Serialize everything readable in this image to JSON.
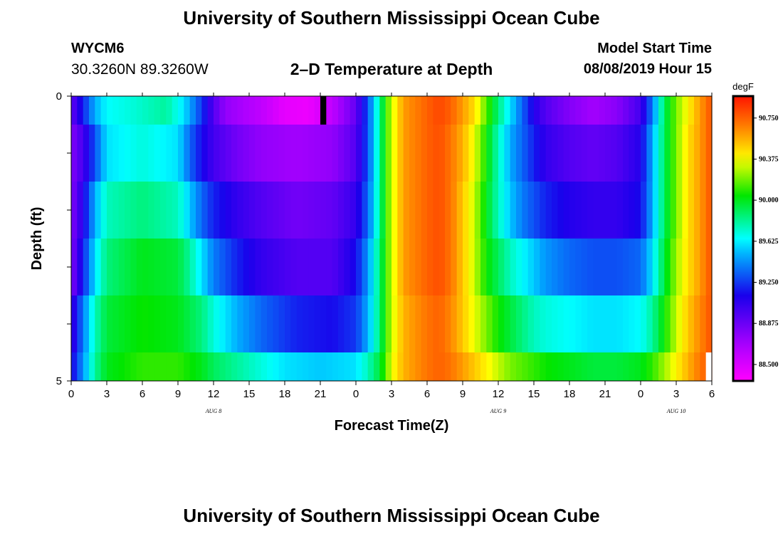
{
  "header": {
    "title": "University of Southern Mississippi Ocean Cube",
    "station_id": "WYCM6",
    "coordinates": "30.3260N 89.3260W",
    "plot_title": "2–D Temperature at Depth",
    "model_start_label": "Model Start Time",
    "model_start_value": "08/08/2019 Hour 15"
  },
  "footer": {
    "title": "University of Southern Mississippi Ocean Cube"
  },
  "chart_data": {
    "type": "heatmap",
    "title": "2–D Temperature at Depth",
    "xlabel": "Forecast Time(Z)",
    "ylabel": "Depth (ft)",
    "x_unit": "hours since Aug 8 00Z",
    "xlim": [
      0,
      54
    ],
    "ylim": [
      0,
      5
    ],
    "x_tick_labels": [
      "0",
      "3",
      "6",
      "9",
      "12",
      "15",
      "18",
      "21",
      "0",
      "3",
      "6",
      "9",
      "12",
      "15",
      "18",
      "21",
      "0",
      "3",
      "6"
    ],
    "x_ticks": [
      0,
      3,
      6,
      9,
      12,
      15,
      18,
      21,
      24,
      27,
      30,
      33,
      36,
      39,
      42,
      45,
      48,
      51,
      54
    ],
    "day_labels": [
      {
        "text": "AUG 8",
        "x": 12
      },
      {
        "text": "AUG 9",
        "x": 36
      },
      {
        "text": "AUG 10",
        "x": 51
      }
    ],
    "y_tick_labels": [
      "0",
      "5"
    ],
    "y_ticks": [
      0,
      1,
      2,
      3,
      4,
      5
    ],
    "colorbar": {
      "unit": "degF",
      "range": [
        88.35,
        90.95
      ],
      "ticks": [
        "88.500",
        "88.875",
        "89.250",
        "89.625",
        "90.000",
        "90.375",
        "90.750"
      ],
      "tick_values": [
        88.5,
        88.875,
        89.25,
        89.625,
        90.0,
        90.375,
        90.75
      ]
    },
    "time_step_hours": 0.5,
    "depth_layers": [
      {
        "depth_range": [
          0,
          0.5
        ],
        "keyframes": [
          [
            0,
            88.9
          ],
          [
            1,
            89.2
          ],
          [
            2,
            89.5
          ],
          [
            3,
            89.65
          ],
          [
            5,
            89.7
          ],
          [
            8,
            89.8
          ],
          [
            9.5,
            89.6
          ],
          [
            11,
            89.25
          ],
          [
            12,
            88.95
          ],
          [
            13,
            88.75
          ],
          [
            16,
            88.6
          ],
          [
            18,
            88.45
          ],
          [
            20,
            88.42
          ],
          [
            22,
            88.6
          ],
          [
            24,
            88.9
          ],
          [
            25,
            89.3
          ],
          [
            26,
            89.8
          ],
          [
            26.5,
            90.1
          ],
          [
            27,
            90.3
          ],
          [
            28,
            90.6
          ],
          [
            30,
            90.75
          ],
          [
            31,
            90.82
          ],
          [
            32,
            90.75
          ],
          [
            33,
            90.6
          ],
          [
            34,
            90.45
          ],
          [
            35,
            90.15
          ],
          [
            36,
            89.85
          ],
          [
            37,
            89.6
          ],
          [
            38,
            89.35
          ],
          [
            39,
            89.1
          ],
          [
            40,
            88.95
          ],
          [
            42,
            88.8
          ],
          [
            44,
            88.7
          ],
          [
            46,
            88.78
          ],
          [
            48,
            89.0
          ],
          [
            49,
            89.4
          ],
          [
            50,
            89.9
          ],
          [
            51,
            90.2
          ],
          [
            52,
            90.4
          ],
          [
            53,
            90.6
          ],
          [
            54,
            90.8
          ]
        ]
      },
      {
        "depth_range": [
          0.5,
          1.5
        ],
        "keyframes": [
          [
            0,
            88.8
          ],
          [
            1,
            89.0
          ],
          [
            2,
            89.3
          ],
          [
            3,
            89.6
          ],
          [
            6,
            89.7
          ],
          [
            9,
            89.6
          ],
          [
            10,
            89.35
          ],
          [
            11,
            89.15
          ],
          [
            12,
            89.0
          ],
          [
            14,
            88.85
          ],
          [
            16,
            88.75
          ],
          [
            19,
            88.7
          ],
          [
            22,
            88.75
          ],
          [
            24,
            88.95
          ],
          [
            25,
            89.3
          ],
          [
            26,
            89.8
          ],
          [
            26.5,
            90.1
          ],
          [
            27,
            90.3
          ],
          [
            28,
            90.6
          ],
          [
            30,
            90.75
          ],
          [
            31,
            90.8
          ],
          [
            32,
            90.7
          ],
          [
            33,
            90.55
          ],
          [
            34,
            90.35
          ],
          [
            35,
            90.05
          ],
          [
            36,
            89.75
          ],
          [
            37,
            89.5
          ],
          [
            38,
            89.35
          ],
          [
            39,
            89.2
          ],
          [
            40,
            89.05
          ],
          [
            42,
            88.95
          ],
          [
            44,
            88.9
          ],
          [
            46,
            88.95
          ],
          [
            48,
            89.1
          ],
          [
            49,
            89.5
          ],
          [
            50,
            89.9
          ],
          [
            51,
            90.2
          ],
          [
            52,
            90.45
          ],
          [
            53,
            90.6
          ],
          [
            54,
            90.8
          ]
        ]
      },
      {
        "depth_range": [
          1.5,
          2.5
        ],
        "keyframes": [
          [
            0,
            88.8
          ],
          [
            1,
            89.1
          ],
          [
            2,
            89.5
          ],
          [
            3,
            89.75
          ],
          [
            6,
            89.85
          ],
          [
            9,
            89.75
          ],
          [
            10,
            89.55
          ],
          [
            11,
            89.35
          ],
          [
            12,
            89.2
          ],
          [
            14,
            89.05
          ],
          [
            16,
            88.95
          ],
          [
            19,
            88.85
          ],
          [
            22,
            88.9
          ],
          [
            24,
            89.05
          ],
          [
            25,
            89.35
          ],
          [
            26,
            89.8
          ],
          [
            26.5,
            90.1
          ],
          [
            27,
            90.3
          ],
          [
            28,
            90.6
          ],
          [
            30,
            90.75
          ],
          [
            31,
            90.8
          ],
          [
            32,
            90.7
          ],
          [
            33,
            90.5
          ],
          [
            34,
            90.3
          ],
          [
            35,
            90.0
          ],
          [
            36,
            89.75
          ],
          [
            37,
            89.55
          ],
          [
            38,
            89.4
          ],
          [
            39,
            89.3
          ],
          [
            40,
            89.2
          ],
          [
            42,
            89.1
          ],
          [
            44,
            89.05
          ],
          [
            46,
            89.05
          ],
          [
            48,
            89.15
          ],
          [
            49,
            89.5
          ],
          [
            50,
            89.9
          ],
          [
            51,
            90.2
          ],
          [
            52,
            90.45
          ],
          [
            53,
            90.6
          ],
          [
            54,
            90.8
          ]
        ]
      },
      {
        "depth_range": [
          2.5,
          3.5
        ],
        "keyframes": [
          [
            0,
            88.8
          ],
          [
            1,
            89.2
          ],
          [
            2,
            89.6
          ],
          [
            3,
            89.85
          ],
          [
            6,
            90.0
          ],
          [
            9,
            89.95
          ],
          [
            10,
            89.8
          ],
          [
            11,
            89.6
          ],
          [
            12,
            89.4
          ],
          [
            14,
            89.2
          ],
          [
            16,
            89.05
          ],
          [
            19,
            88.95
          ],
          [
            22,
            88.95
          ],
          [
            24,
            89.15
          ],
          [
            25,
            89.45
          ],
          [
            26,
            89.85
          ],
          [
            26.5,
            90.1
          ],
          [
            27,
            90.3
          ],
          [
            28,
            90.6
          ],
          [
            30,
            90.75
          ],
          [
            31,
            90.8
          ],
          [
            32,
            90.7
          ],
          [
            33,
            90.5
          ],
          [
            34,
            90.3
          ],
          [
            35,
            90.05
          ],
          [
            36,
            89.9
          ],
          [
            37,
            89.75
          ],
          [
            38,
            89.65
          ],
          [
            39,
            89.55
          ],
          [
            40,
            89.45
          ],
          [
            42,
            89.35
          ],
          [
            44,
            89.3
          ],
          [
            46,
            89.3
          ],
          [
            48,
            89.35
          ],
          [
            49,
            89.6
          ],
          [
            50,
            89.95
          ],
          [
            51,
            90.25
          ],
          [
            52,
            90.45
          ],
          [
            53,
            90.6
          ],
          [
            54,
            90.8
          ]
        ]
      },
      {
        "depth_range": [
          3.5,
          4.5
        ],
        "keyframes": [
          [
            0,
            89.0
          ],
          [
            1,
            89.4
          ],
          [
            2,
            89.75
          ],
          [
            3,
            89.95
          ],
          [
            6,
            90.05
          ],
          [
            9,
            90.0
          ],
          [
            11,
            89.85
          ],
          [
            12,
            89.7
          ],
          [
            14,
            89.5
          ],
          [
            16,
            89.35
          ],
          [
            19,
            89.2
          ],
          [
            22,
            89.15
          ],
          [
            24,
            89.25
          ],
          [
            25,
            89.5
          ],
          [
            26,
            89.85
          ],
          [
            26.5,
            90.1
          ],
          [
            27,
            90.3
          ],
          [
            28,
            90.55
          ],
          [
            30,
            90.7
          ],
          [
            31,
            90.75
          ],
          [
            32,
            90.65
          ],
          [
            33,
            90.5
          ],
          [
            34,
            90.35
          ],
          [
            35,
            90.2
          ],
          [
            36,
            90.05
          ],
          [
            37,
            89.95
          ],
          [
            38,
            89.85
          ],
          [
            39,
            89.75
          ],
          [
            40,
            89.7
          ],
          [
            42,
            89.65
          ],
          [
            44,
            89.6
          ],
          [
            46,
            89.6
          ],
          [
            48,
            89.65
          ],
          [
            49,
            89.8
          ],
          [
            50,
            90.05
          ],
          [
            51,
            90.3
          ],
          [
            52,
            90.5
          ],
          [
            53,
            90.65
          ],
          [
            54,
            90.8
          ]
        ]
      },
      {
        "depth_range": [
          4.5,
          5
        ],
        "keyframes": [
          [
            0,
            89.1
          ],
          [
            1,
            89.45
          ],
          [
            2,
            89.8
          ],
          [
            3,
            90.0
          ],
          [
            6,
            90.1
          ],
          [
            9,
            90.1
          ],
          [
            11,
            90.0
          ],
          [
            12,
            89.9
          ],
          [
            15,
            89.75
          ],
          [
            18,
            89.6
          ],
          [
            21,
            89.55
          ],
          [
            24,
            89.6
          ],
          [
            25,
            89.75
          ],
          [
            26,
            89.95
          ],
          [
            26.5,
            90.15
          ],
          [
            27,
            90.35
          ],
          [
            28,
            90.55
          ],
          [
            30,
            90.7
          ],
          [
            31,
            90.75
          ],
          [
            32,
            90.7
          ],
          [
            33,
            90.6
          ],
          [
            34,
            90.5
          ],
          [
            35,
            90.4
          ],
          [
            36,
            90.3
          ],
          [
            37,
            90.2
          ],
          [
            38,
            90.15
          ],
          [
            39,
            90.1
          ],
          [
            40,
            90.05
          ],
          [
            42,
            90.0
          ],
          [
            44,
            89.95
          ],
          [
            46,
            89.95
          ],
          [
            48,
            90.0
          ],
          [
            49,
            90.1
          ],
          [
            50,
            90.25
          ],
          [
            51,
            90.4
          ],
          [
            52,
            90.55
          ],
          [
            53,
            90.7
          ],
          [
            54,
            90.8
          ]
        ]
      }
    ],
    "missing_cells": [
      {
        "x_range": [
          21,
          21.5
        ],
        "depth_range": [
          0,
          0.5
        ],
        "color": "#000000"
      },
      {
        "x_range": [
          53.5,
          54
        ],
        "depth_range": [
          4.5,
          5
        ],
        "color": "#ffffff"
      }
    ]
  }
}
